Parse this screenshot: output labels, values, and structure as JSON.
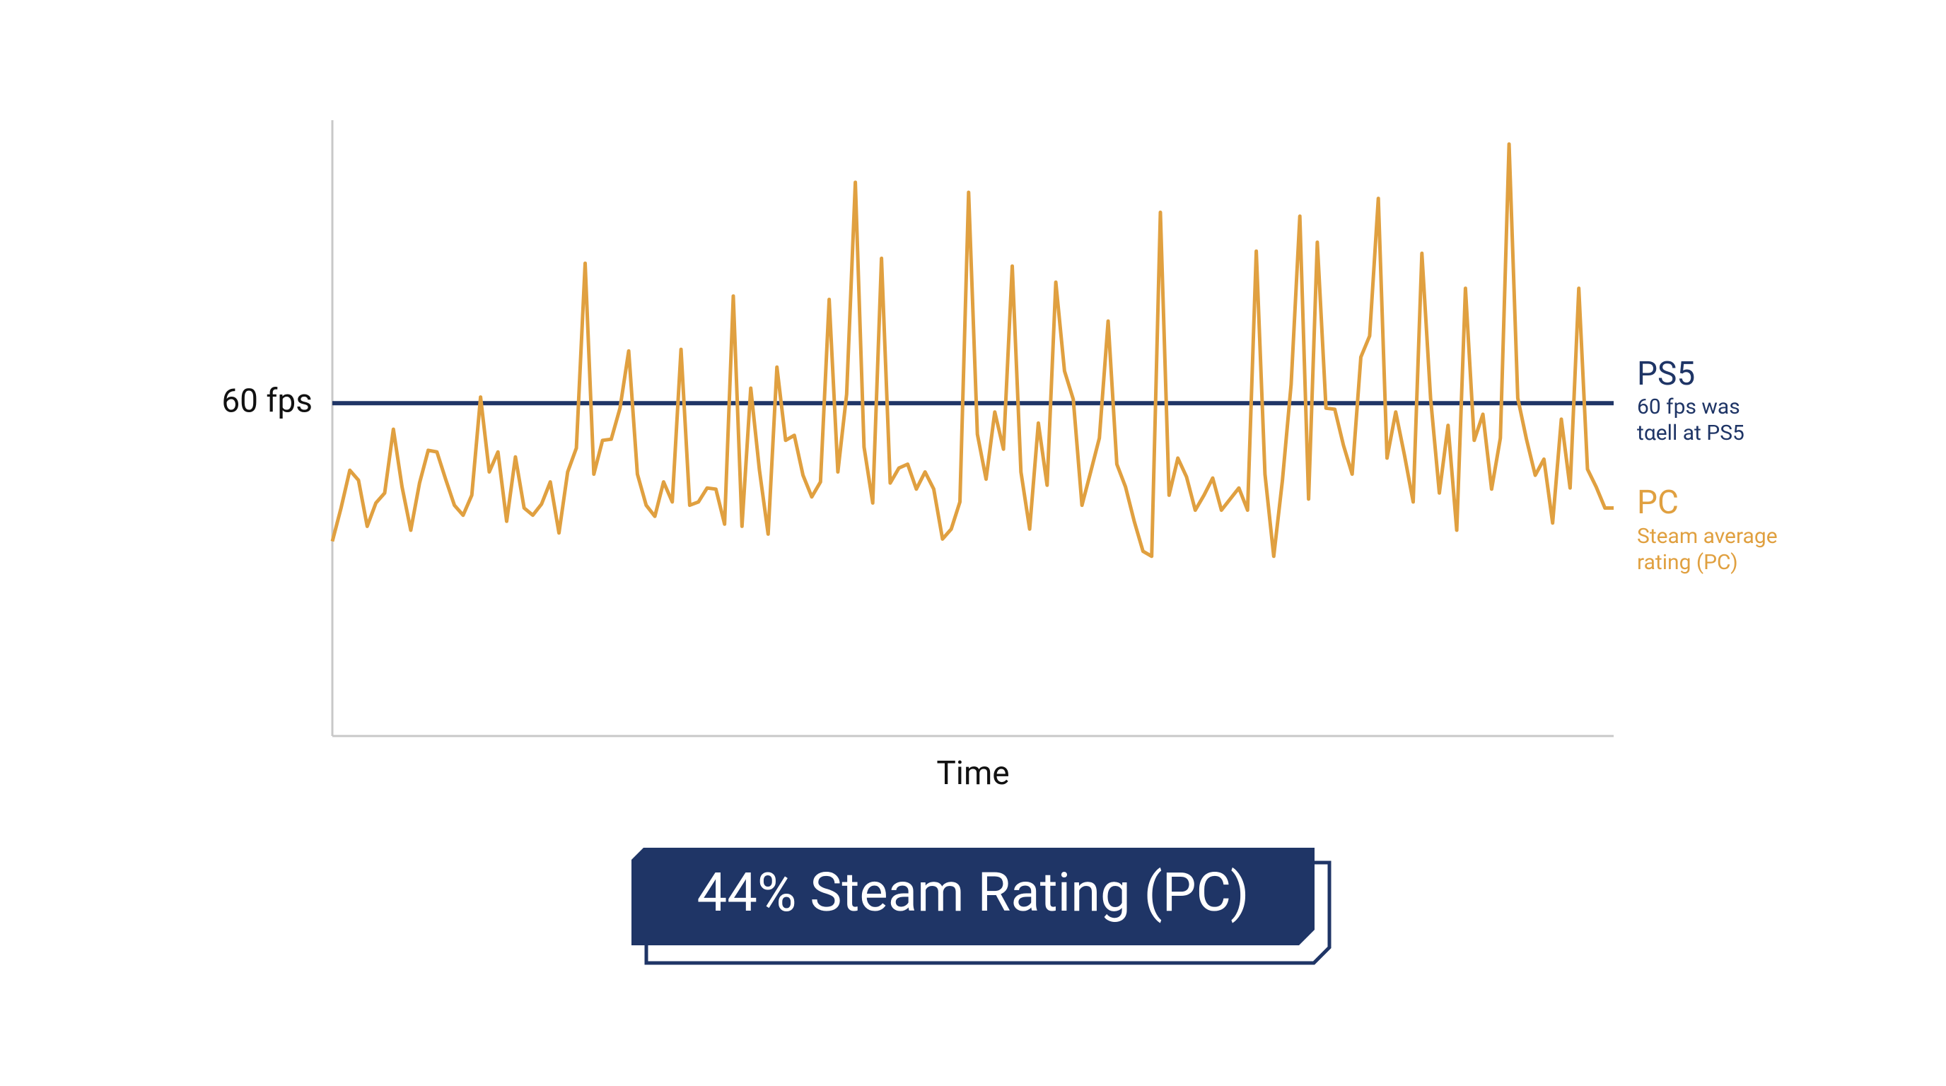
{
  "chart_data": {
    "type": "line",
    "x_label": "Time",
    "ylim": [
      0,
      111
    ],
    "yticks": [
      {
        "value": 60,
        "label": "60 fps"
      }
    ],
    "series": [
      {
        "name": "PS5",
        "color": "#1f3566",
        "description": [
          "60 fps was",
          "tαell at PS5"
        ],
        "values": [
          60,
          60
        ]
      },
      {
        "name": "PC",
        "color": "#e0a040",
        "description": [
          "Steam average",
          "rating (PC)"
        ],
        "values": [
          35.1,
          41.1,
          47.9,
          46.1,
          37.8,
          42.0,
          43.8,
          55.3,
          44.9,
          37.1,
          45.6,
          51.5,
          51.2,
          46.3,
          41.6,
          39.8,
          43.4,
          61.1,
          47.6,
          51.2,
          38.7,
          50.3,
          41.1,
          39.8,
          41.8,
          45.8,
          36.6,
          47.6,
          51.9,
          85.2,
          47.2,
          53.3,
          53.5,
          59.1,
          69.4,
          47.2,
          41.6,
          39.6,
          45.8,
          42.2,
          69.7,
          41.6,
          42.2,
          44.7,
          44.5,
          38.2,
          79.3,
          37.8,
          62.7,
          47.9,
          36.4,
          66.5,
          53.3,
          54.2,
          47.0,
          43.1,
          45.8,
          78.7,
          47.6,
          61.6,
          99.8,
          52.1,
          42.0,
          86.1,
          45.6,
          48.3,
          49.0,
          44.5,
          47.6,
          44.5,
          35.5,
          37.3,
          42.2,
          98.0,
          54.4,
          46.3,
          58.4,
          51.7,
          84.7,
          47.6,
          37.3,
          56.4,
          45.2,
          81.8,
          65.8,
          60.7,
          41.6,
          47.6,
          53.7,
          74.8,
          49.0,
          44.9,
          38.7,
          33.3,
          32.4,
          94.4,
          43.4,
          50.1,
          46.7,
          40.7,
          43.4,
          46.5,
          40.7,
          42.7,
          44.7,
          40.7,
          87.4,
          47.2,
          32.4,
          46.1,
          63.4,
          93.7,
          42.7,
          89.0,
          59.1,
          58.9,
          52.4,
          47.2,
          68.3,
          72.1,
          96.9,
          50.1,
          58.4,
          50.6,
          42.2,
          87.0,
          60.9,
          43.8,
          56.0,
          37.1,
          80.7,
          53.3,
          58.0,
          44.5,
          53.7,
          106.7,
          60.9,
          53.5,
          47.0,
          49.9,
          38.4,
          57.1,
          44.7,
          80.7,
          48.1,
          44.9,
          41.1,
          41.1
        ]
      }
    ],
    "banner": "44% Steam Rating (PC)"
  }
}
